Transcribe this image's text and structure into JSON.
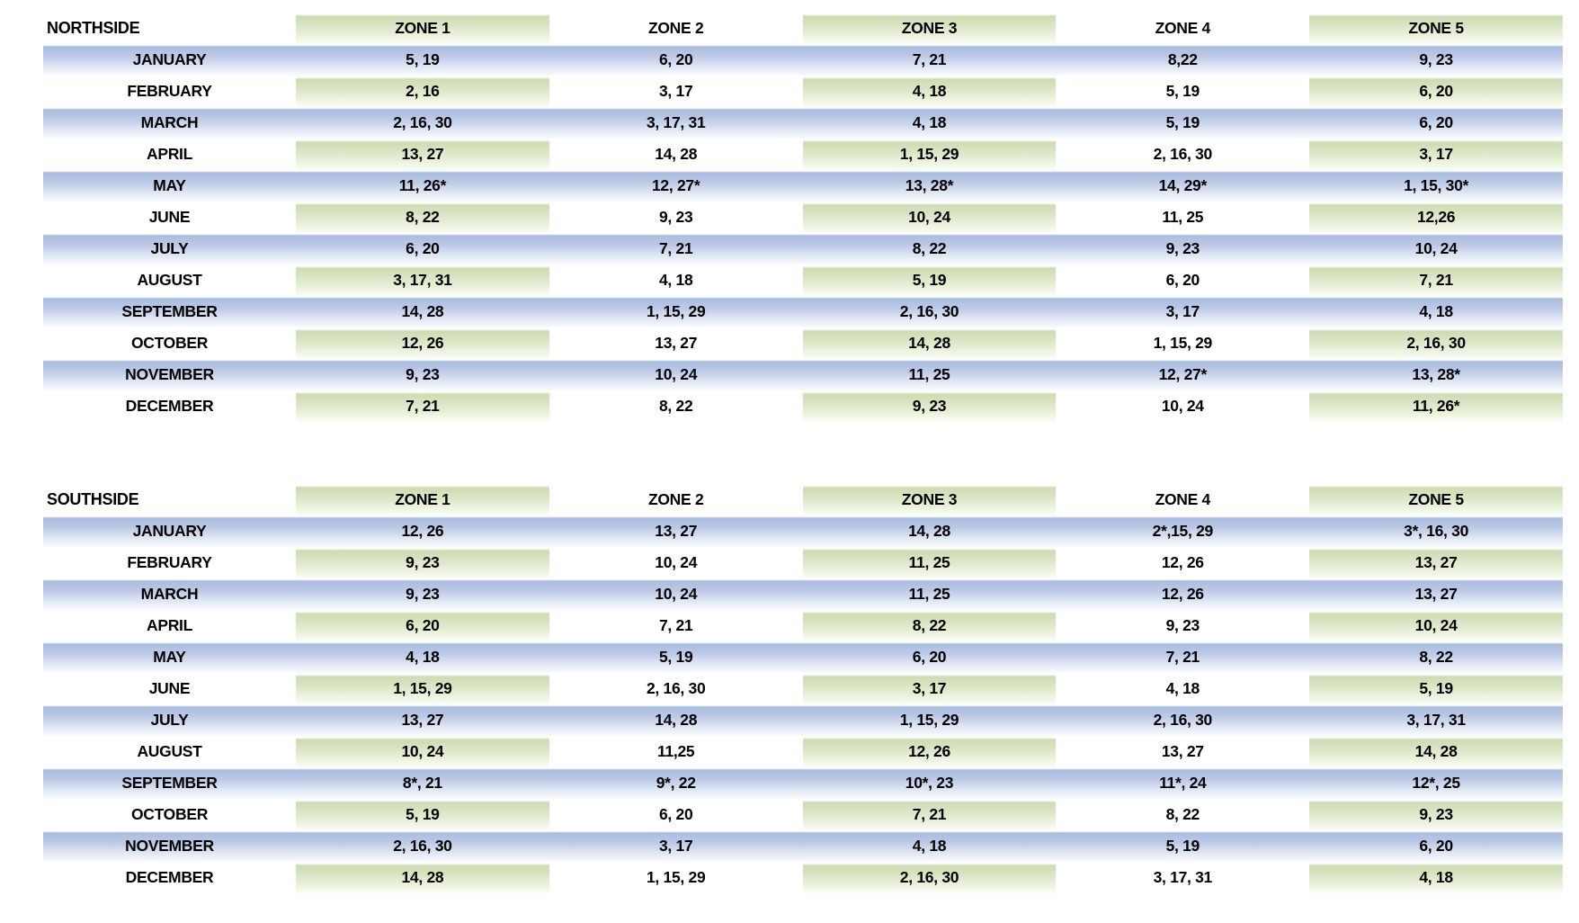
{
  "colors": {
    "blue_band_top": "#a9bddf",
    "blue_band_mid": "#bcc9e6",
    "blue_band_low": "#e3eaf5",
    "blue_band_bottom": "#fafbfd",
    "green_band_top": "#cddcb2",
    "green_band_mid": "#d8e4c2",
    "green_band_low": "#ecf3de",
    "green_band_bottom": "#fbfdf7",
    "text": "#000000"
  },
  "tables": [
    {
      "name": "NORTHSIDE",
      "zones": [
        "ZONE 1",
        "ZONE 2",
        "ZONE 3",
        "ZONE 4",
        "ZONE 5"
      ],
      "rows": [
        {
          "month": "JANUARY",
          "values": [
            "5, 19",
            "6, 20",
            "7, 21",
            "8,22",
            "9, 23"
          ]
        },
        {
          "month": "FEBRUARY",
          "values": [
            "2, 16",
            "3, 17",
            "4, 18",
            "5, 19",
            "6, 20"
          ]
        },
        {
          "month": "MARCH",
          "values": [
            "2, 16, 30",
            "3, 17, 31",
            "4, 18",
            "5, 19",
            "6, 20"
          ]
        },
        {
          "month": "APRIL",
          "values": [
            "13, 27",
            "14, 28",
            "1, 15, 29",
            "2, 16, 30",
            "3, 17"
          ]
        },
        {
          "month": "MAY",
          "values": [
            "11, 26*",
            "12, 27*",
            "13, 28*",
            "14, 29*",
            "1, 15, 30*"
          ]
        },
        {
          "month": "JUNE",
          "values": [
            "8, 22",
            "9, 23",
            "10, 24",
            "11, 25",
            "12,26"
          ]
        },
        {
          "month": "JULY",
          "values": [
            "6, 20",
            "7, 21",
            "8, 22",
            "9, 23",
            "10, 24"
          ]
        },
        {
          "month": "AUGUST",
          "values": [
            "3, 17, 31",
            "4, 18",
            "5, 19",
            "6, 20",
            "7, 21"
          ]
        },
        {
          "month": "SEPTEMBER",
          "values": [
            "14, 28",
            "1, 15, 29",
            "2, 16, 30",
            "3, 17",
            "4, 18"
          ]
        },
        {
          "month": "OCTOBER",
          "values": [
            "12, 26",
            "13, 27",
            "14, 28",
            "1, 15, 29",
            "2, 16, 30"
          ]
        },
        {
          "month": "NOVEMBER",
          "values": [
            "9, 23",
            "10, 24",
            "11, 25",
            "12, 27*",
            "13, 28*"
          ]
        },
        {
          "month": "DECEMBER",
          "values": [
            "7, 21",
            "8, 22",
            "9, 23",
            "10, 24",
            "11, 26*"
          ]
        }
      ]
    },
    {
      "name": "SOUTHSIDE",
      "zones": [
        "ZONE 1",
        "ZONE 2",
        "ZONE 3",
        "ZONE 4",
        "ZONE 5"
      ],
      "rows": [
        {
          "month": "JANUARY",
          "values": [
            "12, 26",
            "13, 27",
            "14, 28",
            "2*,15, 29",
            "3*, 16, 30"
          ]
        },
        {
          "month": "FEBRUARY",
          "values": [
            "9, 23",
            "10, 24",
            "11, 25",
            "12, 26",
            "13, 27"
          ]
        },
        {
          "month": "MARCH",
          "values": [
            "9, 23",
            "10, 24",
            "11, 25",
            "12, 26",
            "13, 27"
          ]
        },
        {
          "month": "APRIL",
          "values": [
            "6, 20",
            "7, 21",
            "8, 22",
            "9, 23",
            "10, 24"
          ]
        },
        {
          "month": "MAY",
          "values": [
            "4, 18",
            "5, 19",
            "6, 20",
            "7, 21",
            "8, 22"
          ]
        },
        {
          "month": "JUNE",
          "values": [
            "1, 15, 29",
            "2, 16, 30",
            "3, 17",
            "4, 18",
            "5, 19"
          ]
        },
        {
          "month": "JULY",
          "values": [
            "13, 27",
            "14, 28",
            "1, 15, 29",
            "2, 16, 30",
            "3, 17, 31"
          ]
        },
        {
          "month": "AUGUST",
          "values": [
            "10, 24",
            "11,25",
            "12, 26",
            "13, 27",
            "14, 28"
          ]
        },
        {
          "month": "SEPTEMBER",
          "values": [
            "8*, 21",
            "9*, 22",
            "10*, 23",
            "11*, 24",
            "12*, 25"
          ]
        },
        {
          "month": "OCTOBER",
          "values": [
            "5, 19",
            "6, 20",
            "7, 21",
            "8, 22",
            "9, 23"
          ]
        },
        {
          "month": "NOVEMBER",
          "values": [
            "2, 16, 30",
            "3, 17",
            "4, 18",
            "5, 19",
            "6, 20"
          ]
        },
        {
          "month": "DECEMBER",
          "values": [
            "14, 28",
            "1, 15, 29",
            "2, 16, 30",
            "3, 17, 31",
            "4, 18"
          ]
        }
      ]
    }
  ]
}
